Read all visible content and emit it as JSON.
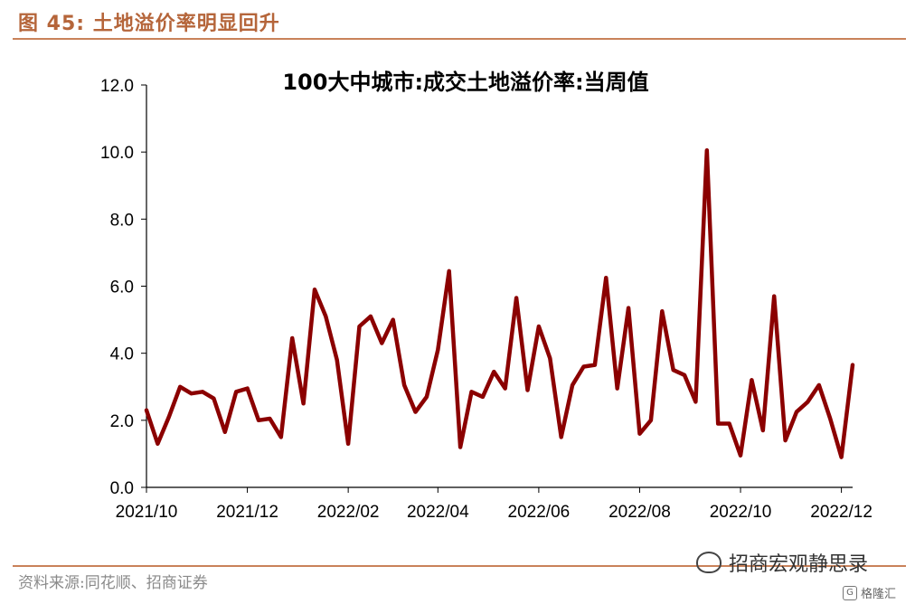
{
  "header": {
    "figure_title": "图 45:  土地溢价率明显回升"
  },
  "footer": {
    "source": "资料来源:同花顺、招商证券",
    "watermark": "招商宏观静思录",
    "brand": "格隆汇",
    "brand_icon_glyph": "G"
  },
  "chart_data": {
    "type": "line",
    "title": "100大中城市:成交土地溢价率:当周值",
    "xlabel": "",
    "ylabel": "",
    "ylim": [
      0,
      12
    ],
    "yticks": [
      "0.0",
      "2.0",
      "4.0",
      "6.0",
      "8.0",
      "10.0",
      "12.0"
    ],
    "xticks": [
      {
        "label": "2021/10",
        "index": 0
      },
      {
        "label": "2021/12",
        "index": 9
      },
      {
        "label": "2022/02",
        "index": 18
      },
      {
        "label": "2022/04",
        "index": 26
      },
      {
        "label": "2022/06",
        "index": 35
      },
      {
        "label": "2022/08",
        "index": 44
      },
      {
        "label": "2022/10",
        "index": 53
      },
      {
        "label": "2022/12",
        "index": 62
      }
    ],
    "grid": false,
    "legend": "none",
    "line_color": "#8b0000",
    "series": [
      {
        "values": [
          2.3,
          1.3,
          2.1,
          3.0,
          2.8,
          2.85,
          2.65,
          1.65,
          2.85,
          2.95,
          2.0,
          2.05,
          1.5,
          4.45,
          2.5,
          5.9,
          5.1,
          3.8,
          1.3,
          4.8,
          5.1,
          4.3,
          5.0,
          3.05,
          2.25,
          2.7,
          4.1,
          6.45,
          1.2,
          2.85,
          2.7,
          3.45,
          2.95,
          5.65,
          2.9,
          4.8,
          3.85,
          1.5,
          3.05,
          3.6,
          3.65,
          6.25,
          2.95,
          5.35,
          1.6,
          2.0,
          5.25,
          3.5,
          3.35,
          2.55,
          10.05,
          1.9,
          1.9,
          0.95,
          3.2,
          1.7,
          5.7,
          1.4,
          2.25,
          2.55,
          3.05,
          2.05,
          0.9,
          3.65
        ]
      }
    ]
  }
}
